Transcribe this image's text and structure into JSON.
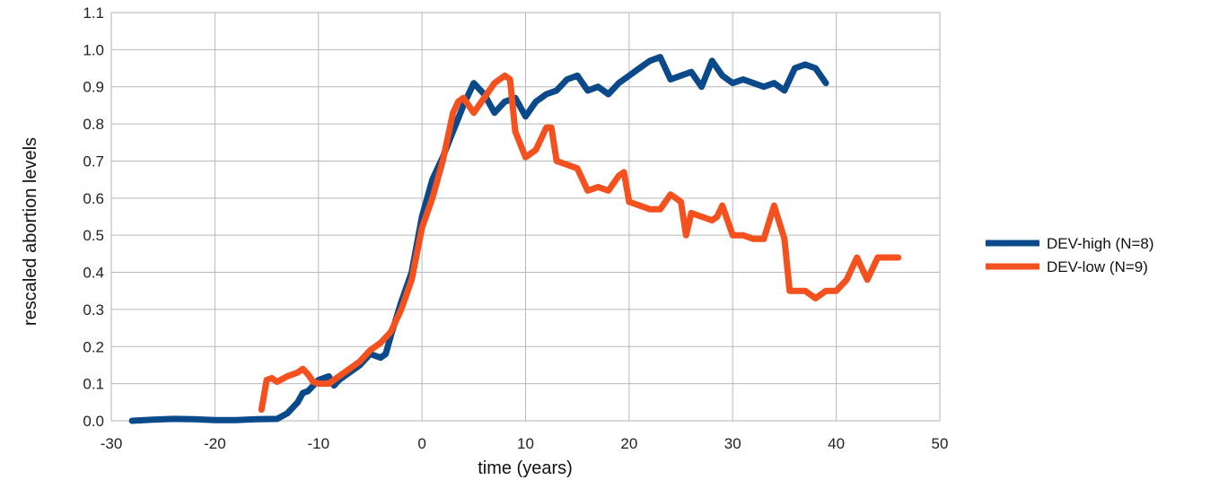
{
  "chart_data": {
    "type": "line",
    "xlabel": "time (years)",
    "ylabel": "rescaled abortion levels",
    "xlim": [
      -30,
      50
    ],
    "ylim": [
      0,
      1.1
    ],
    "xticks": [
      -30,
      -20,
      -10,
      0,
      10,
      20,
      30,
      40,
      50
    ],
    "yticks": [
      0,
      0.1,
      0.2,
      0.3,
      0.4,
      0.5,
      0.6,
      0.7,
      0.8,
      0.9,
      1.0,
      1.1
    ],
    "xtick_labels": [
      "-30",
      "-20",
      "-10",
      "0",
      "10",
      "20",
      "30",
      "40",
      "50"
    ],
    "ytick_labels": [
      "0.0",
      "0.1",
      "0.2",
      "0.3",
      "0.4",
      "0.5",
      "0.6",
      "0.7",
      "0.8",
      "0.9",
      "1.0",
      "1.1"
    ],
    "grid": true,
    "legend_position": "right",
    "series": [
      {
        "name": "DEV-high (N=8)",
        "color": "#0b4a8a",
        "x": [
          -28,
          -26,
          -24,
          -22,
          -20,
          -18,
          -16,
          -14,
          -13,
          -12,
          -11.5,
          -11,
          -10,
          -9,
          -8.5,
          -8,
          -7,
          -6,
          -5,
          -4,
          -3.5,
          -3,
          -2,
          -1,
          0,
          1,
          2,
          3,
          4,
          5,
          6,
          7,
          8,
          9,
          10,
          11,
          12,
          13,
          14,
          15,
          16,
          17,
          18,
          19,
          20,
          21,
          22,
          23,
          24,
          25,
          26,
          27,
          28,
          29,
          30,
          31,
          32,
          33,
          34,
          35,
          36,
          37,
          38,
          39
        ],
        "values": [
          0.0,
          0.003,
          0.005,
          0.004,
          0.002,
          0.002,
          0.004,
          0.005,
          0.02,
          0.05,
          0.075,
          0.08,
          0.11,
          0.12,
          0.095,
          0.11,
          0.13,
          0.15,
          0.18,
          0.17,
          0.18,
          0.23,
          0.32,
          0.4,
          0.55,
          0.65,
          0.71,
          0.78,
          0.85,
          0.91,
          0.88,
          0.83,
          0.86,
          0.87,
          0.82,
          0.86,
          0.88,
          0.89,
          0.92,
          0.93,
          0.89,
          0.9,
          0.88,
          0.91,
          0.93,
          0.95,
          0.97,
          0.98,
          0.92,
          0.93,
          0.94,
          0.9,
          0.97,
          0.93,
          0.91,
          0.92,
          0.91,
          0.9,
          0.91,
          0.89,
          0.95,
          0.96,
          0.95,
          0.91
        ]
      },
      {
        "name": "DEV-low (N=9)",
        "color": "#f4511e",
        "x": [
          -15.5,
          -15,
          -14.5,
          -14,
          -13,
          -12,
          -11.5,
          -11,
          -10.5,
          -10,
          -9,
          -8,
          -7,
          -6,
          -5,
          -4,
          -3,
          -2,
          -1,
          0,
          1,
          2,
          3,
          3.5,
          4,
          5,
          6,
          7,
          8,
          8.5,
          9,
          10,
          11,
          12,
          12.5,
          13,
          14,
          15,
          16,
          17,
          18,
          19,
          19.5,
          20,
          21,
          22,
          23,
          24,
          24.5,
          25,
          25.5,
          26,
          27,
          28,
          28.5,
          29,
          30,
          31,
          32,
          33,
          34,
          35,
          35.5,
          36,
          37,
          38,
          39,
          40,
          41,
          42,
          43,
          44,
          45,
          46
        ],
        "values": [
          0.03,
          0.11,
          0.115,
          0.105,
          0.12,
          0.13,
          0.14,
          0.125,
          0.105,
          0.1,
          0.1,
          0.12,
          0.14,
          0.16,
          0.19,
          0.21,
          0.24,
          0.3,
          0.38,
          0.52,
          0.6,
          0.7,
          0.83,
          0.86,
          0.87,
          0.83,
          0.87,
          0.91,
          0.93,
          0.92,
          0.78,
          0.71,
          0.73,
          0.79,
          0.79,
          0.7,
          0.69,
          0.68,
          0.62,
          0.63,
          0.62,
          0.66,
          0.67,
          0.59,
          0.58,
          0.57,
          0.57,
          0.61,
          0.6,
          0.59,
          0.5,
          0.56,
          0.55,
          0.54,
          0.55,
          0.58,
          0.5,
          0.5,
          0.49,
          0.49,
          0.58,
          0.49,
          0.35,
          0.35,
          0.35,
          0.33,
          0.35,
          0.35,
          0.38,
          0.44,
          0.38,
          0.44,
          0.44,
          0.44
        ]
      }
    ]
  }
}
